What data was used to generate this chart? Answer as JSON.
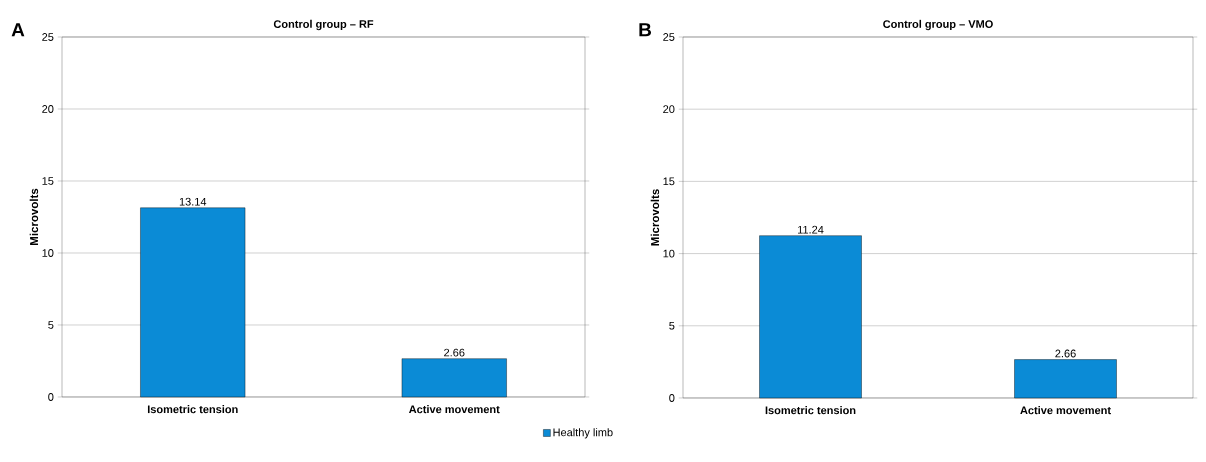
{
  "chart_data": [
    {
      "type": "bar",
      "title": "Control group – RF",
      "ylabel": "Microvolts",
      "categories": [
        "Isometric tension",
        "Active movement"
      ],
      "series": [
        {
          "name": "Healthy limb",
          "color": "#0b8bd6",
          "values": [
            13.14,
            2.66
          ]
        }
      ],
      "ylim": [
        0,
        25
      ],
      "yticks": [
        0,
        5,
        10,
        15,
        20,
        25
      ],
      "grid": "y",
      "data_labels": true,
      "legend": "bottom",
      "annotations": [
        "A"
      ]
    },
    {
      "type": "bar",
      "title": "Control group – VMO",
      "ylabel": "Microvolts",
      "categories": [
        "Isometric tension",
        "Active movement"
      ],
      "series": [
        {
          "color": "#0b8bd6",
          "values": [
            11.24,
            2.66
          ]
        }
      ],
      "ylim": [
        0,
        25
      ],
      "yticks": [
        0,
        5,
        10,
        15,
        20,
        25
      ],
      "grid": "y",
      "data_labels": true,
      "annotations": [
        "B"
      ]
    }
  ]
}
